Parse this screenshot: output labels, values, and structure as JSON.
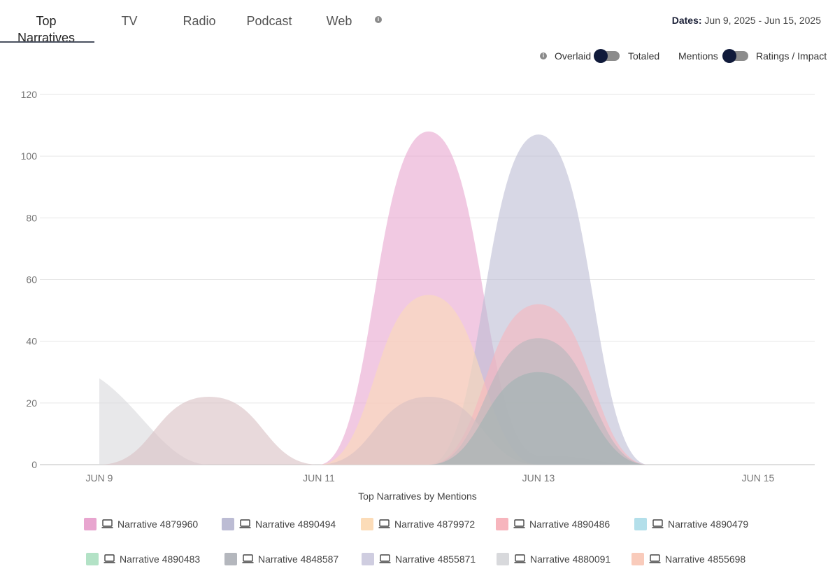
{
  "tabs": [
    {
      "label": "Top Narratives",
      "active": true
    },
    {
      "label": "TV",
      "active": false
    },
    {
      "label": "Radio",
      "active": false
    },
    {
      "label": "Podcast",
      "active": false
    },
    {
      "label": "Web",
      "active": false
    }
  ],
  "dates": {
    "label": "Dates:",
    "value": "Jun 9, 2025 - Jun 15, 2025"
  },
  "toggles": {
    "overlaid_label": "Overlaid",
    "totaled_label": "Totaled",
    "mentions_label": "Mentions",
    "ratings_label": "Ratings / Impact"
  },
  "chart_data": {
    "type": "area",
    "title": "",
    "xlabel": "Top Narratives by Mentions",
    "ylabel": "",
    "x": [
      "JUN 9",
      "JUN 10",
      "JUN 11",
      "JUN 12",
      "JUN 13",
      "JUN 14",
      "JUN 15"
    ],
    "x_tick_labels": [
      "JUN 9",
      "JUN 11",
      "JUN 13",
      "JUN 15"
    ],
    "ylim": [
      0,
      120
    ],
    "y_ticks": [
      0,
      20,
      40,
      60,
      80,
      100,
      120
    ],
    "grid": true,
    "legend_position": "bottom",
    "series": [
      {
        "name": "Narrative 4879960",
        "color": "#e8a5cf",
        "values": [
          0,
          0,
          0,
          108,
          3,
          0,
          0
        ]
      },
      {
        "name": "Narrative 4890494",
        "color": "#bcbcd4",
        "values": [
          0,
          0,
          0,
          0,
          107,
          0,
          0
        ]
      },
      {
        "name": "Narrative 4879972",
        "color": "#fcdcb8",
        "values": [
          0,
          0,
          0,
          55,
          0,
          0,
          0
        ]
      },
      {
        "name": "Narrative 4890486",
        "color": "#f7b5bd",
        "values": [
          0,
          0,
          0,
          0,
          52,
          0,
          0
        ]
      },
      {
        "name": "Narrative 4890479",
        "color": "#b3dfea",
        "values": [
          0,
          0,
          0,
          0,
          0,
          0,
          0
        ]
      },
      {
        "name": "Narrative 4890483",
        "color": "#b3e2c6",
        "values": [
          0,
          0,
          0,
          0,
          0,
          0,
          0
        ]
      },
      {
        "name": "Narrative 4848587",
        "color": "#b4b7bd",
        "values": [
          0,
          0,
          0,
          0,
          41,
          0,
          0
        ]
      },
      {
        "name": "Narrative 4855871",
        "color": "#cfcde0",
        "values": [
          0,
          0,
          0,
          0,
          0,
          0,
          0
        ]
      },
      {
        "name": "Narrative 4880091",
        "color": "#d8d9dc",
        "values": [
          28,
          0,
          0,
          0,
          0,
          0,
          0
        ]
      },
      {
        "name": "Narrative 4855698",
        "color": "#f9cbbb",
        "values": [
          0,
          0,
          0,
          0,
          0,
          0,
          0
        ]
      },
      {
        "name": "",
        "color": "#d9bfc3",
        "values": [
          0,
          22,
          0,
          22,
          0,
          0,
          0
        ]
      },
      {
        "name": "",
        "color": "#9fb3b2",
        "values": [
          0,
          0,
          0,
          0,
          30,
          0,
          0
        ]
      }
    ]
  }
}
